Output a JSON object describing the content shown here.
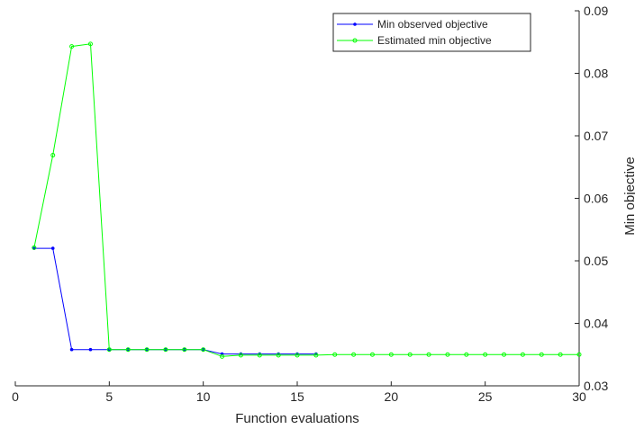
{
  "chart_data": {
    "type": "line",
    "title": "",
    "xlabel": "Function evaluations",
    "ylabel": "Min objective",
    "xlim": [
      0,
      30
    ],
    "ylim": [
      0.03,
      0.09
    ],
    "y_axis_side": "right",
    "grid": false,
    "legend_position": "top-right",
    "x_ticks": [
      "0",
      "5",
      "10",
      "15",
      "20",
      "25",
      "30"
    ],
    "y_ticks": [
      "0.03",
      "0.04",
      "0.05",
      "0.06",
      "0.07",
      "0.08",
      "0.09"
    ],
    "series": [
      {
        "name": "Min observed objective",
        "color": "#0000ff",
        "marker": "dot",
        "x": [
          1,
          2,
          3,
          4,
          5,
          6,
          7,
          8,
          9,
          10,
          11,
          12,
          13,
          14,
          15,
          16
        ],
        "y": [
          0.052,
          0.052,
          0.0358,
          0.0358,
          0.0358,
          0.0358,
          0.0358,
          0.0358,
          0.0358,
          0.0358,
          0.0351,
          0.0351,
          0.0351,
          0.0351,
          0.0351,
          0.0351
        ]
      },
      {
        "name": "Estimated min objective",
        "color": "#00ff00",
        "marker": "circle",
        "x": [
          1,
          2,
          3,
          4,
          5,
          6,
          7,
          8,
          9,
          10,
          11,
          12,
          13,
          14,
          15,
          16,
          17,
          18,
          19,
          20,
          21,
          22,
          23,
          24,
          25,
          26,
          27,
          28,
          29,
          30
        ],
        "y": [
          0.0521,
          0.0669,
          0.0843,
          0.0847,
          0.0358,
          0.0358,
          0.0358,
          0.0358,
          0.0358,
          0.0358,
          0.0347,
          0.0349,
          0.0349,
          0.0349,
          0.0349,
          0.0349,
          0.035,
          0.035,
          0.035,
          0.035,
          0.035,
          0.035,
          0.035,
          0.035,
          0.035,
          0.035,
          0.035,
          0.035,
          0.035,
          0.035
        ]
      }
    ]
  }
}
